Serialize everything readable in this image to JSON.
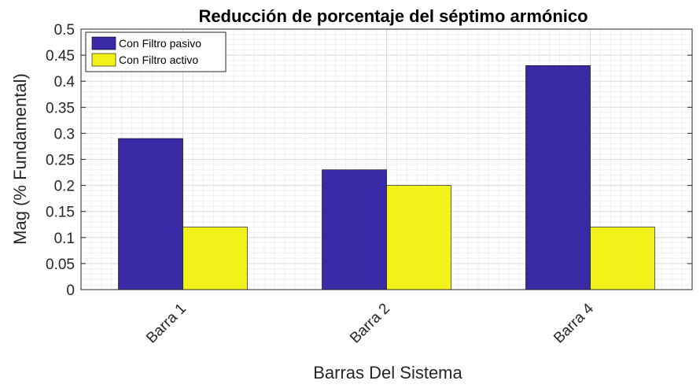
{
  "chart_data": {
    "type": "bar",
    "title": "Reducción de porcentaje del séptimo armónico",
    "xlabel": "Barras Del Sistema",
    "ylabel": "Mag (% Fundamental)",
    "categories": [
      "Barra 1",
      "Barra 2",
      "Barra 4"
    ],
    "series": [
      {
        "name": "Con Filtro pasivo",
        "values": [
          0.29,
          0.23,
          0.43
        ],
        "color": "#3a2aa6"
      },
      {
        "name": "Con Filtro activo",
        "values": [
          0.12,
          0.2,
          0.12
        ],
        "color": "#f2f21a"
      }
    ],
    "ylim": [
      0,
      0.5
    ],
    "yticks": [
      "0",
      "0.05",
      "0.1",
      "0.15",
      "0.2",
      "0.25",
      "0.3",
      "0.35",
      "0.4",
      "0.45",
      "0.5"
    ],
    "grid": true,
    "legend_position": "top-left"
  }
}
